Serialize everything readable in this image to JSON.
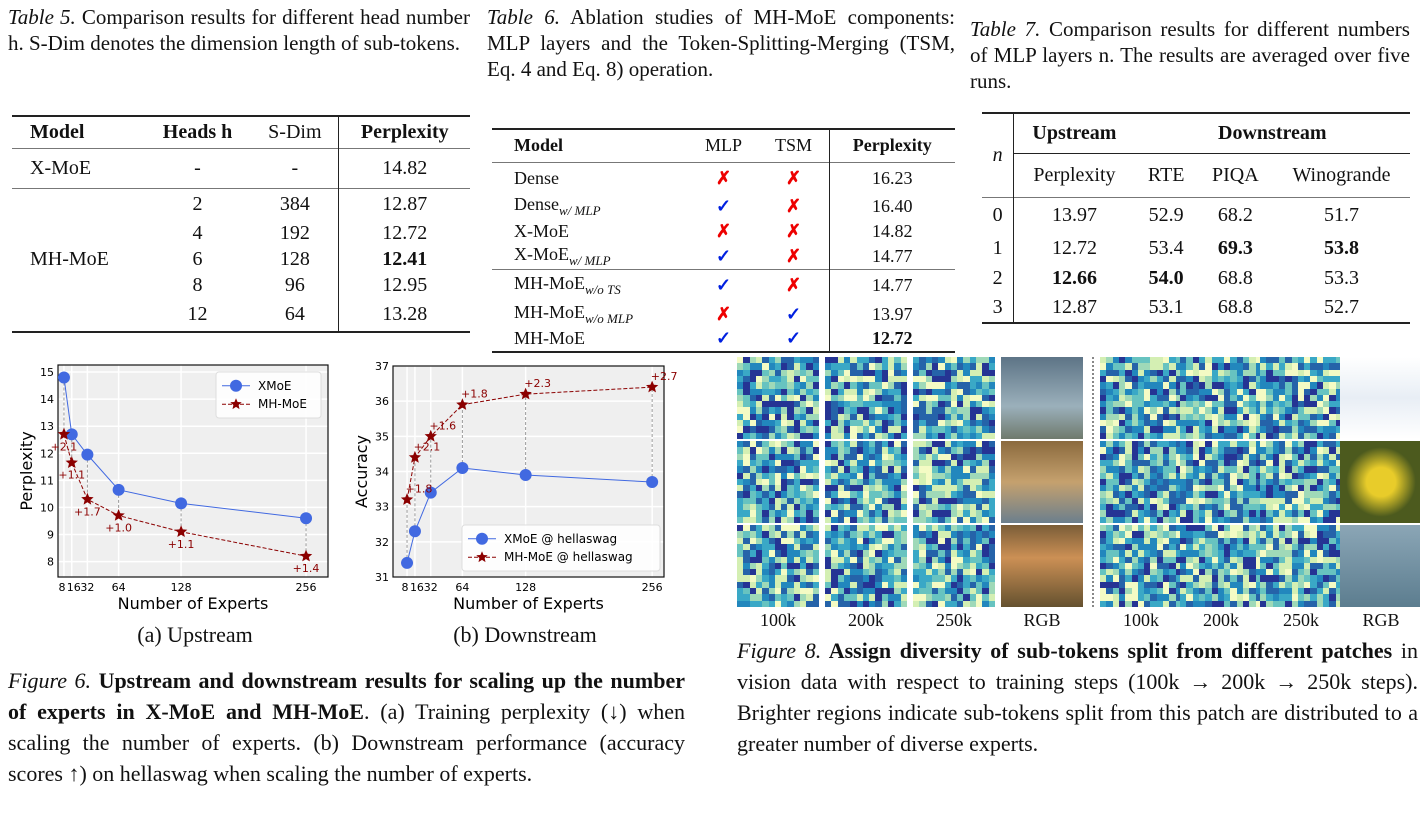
{
  "table5": {
    "label": "Table 5.",
    "caption": " Comparison results for different head number h. S-Dim denotes the dimension length of sub-tokens.",
    "headers": [
      "Model",
      "Heads h",
      "S-Dim",
      "Perplexity"
    ],
    "xmoe": {
      "model": "X-MoE",
      "heads": "-",
      "sdim": "-",
      "ppl": "14.82"
    },
    "mhmoe_label": "MH-MoE",
    "rows": [
      {
        "heads": "2",
        "sdim": "384",
        "ppl": "12.87"
      },
      {
        "heads": "4",
        "sdim": "192",
        "ppl": "12.72"
      },
      {
        "heads": "6",
        "sdim": "128",
        "ppl": "12.41"
      },
      {
        "heads": "8",
        "sdim": "96",
        "ppl": "12.95"
      },
      {
        "heads": "12",
        "sdim": "64",
        "ppl": "13.28"
      }
    ]
  },
  "table6": {
    "label": "Table 6.",
    "caption": " Ablation studies of MH-MoE components: MLP layers and the Token-Splitting-Merging (TSM, Eq. 4 and Eq. 8) operation.",
    "headers": [
      "Model",
      "MLP",
      "TSM",
      "Perplexity"
    ],
    "check": "✓",
    "cross": "✗",
    "rows": [
      {
        "model": "Dense",
        "sub": "",
        "mlp": "cross",
        "tsm": "cross",
        "ppl": "16.23"
      },
      {
        "model": "Dense",
        "sub": "w/ MLP",
        "mlp": "check",
        "tsm": "cross",
        "ppl": "16.40"
      },
      {
        "model": "X-MoE",
        "sub": "",
        "mlp": "cross",
        "tsm": "cross",
        "ppl": "14.82"
      },
      {
        "model": "X-MoE",
        "sub": "w/ MLP",
        "mlp": "check",
        "tsm": "cross",
        "ppl": "14.77"
      },
      {
        "model": "MH-MoE",
        "sub": "w/o TS",
        "mlp": "check",
        "tsm": "cross",
        "ppl": "14.77"
      },
      {
        "model": "MH-MoE",
        "sub": "w/o MLP",
        "mlp": "cross",
        "tsm": "check",
        "ppl": "13.97"
      },
      {
        "model": "MH-MoE",
        "sub": "",
        "mlp": "check",
        "tsm": "check",
        "ppl": "12.72"
      }
    ]
  },
  "table7": {
    "label": "Table 7.",
    "caption": " Comparison results for different numbers of MLP layers n. The results are averaged over five runs.",
    "n": "n",
    "upstream": "Upstream",
    "downstream": "Downstream",
    "cols": [
      "Perplexity",
      "RTE",
      "PIQA",
      "Winogrande"
    ],
    "rows": [
      [
        "0",
        "13.97",
        "52.9",
        "68.2",
        "51.7"
      ],
      [
        "1",
        "12.72",
        "53.4",
        "69.3",
        "53.8"
      ],
      [
        "2",
        "12.66",
        "54.0",
        "68.8",
        "53.3"
      ],
      [
        "3",
        "12.87",
        "53.1",
        "68.8",
        "52.7"
      ]
    ]
  },
  "chart_data": [
    {
      "type": "line",
      "title": "(a) Upstream",
      "xlabel": "Number of Experts",
      "ylabel": "Perplexity",
      "x": [
        8,
        16,
        32,
        64,
        128,
        256
      ],
      "xticks": [
        "8",
        "16",
        "32",
        "64",
        "128",
        "256"
      ],
      "yticks": [
        "8",
        "9",
        "10",
        "11",
        "12",
        "13",
        "14",
        "15"
      ],
      "ylim": [
        7.43,
        15.26
      ],
      "xlim": [
        1.9,
        278.5
      ],
      "legend": "top-right",
      "grid": true,
      "series": [
        {
          "name": "XMoE",
          "values": [
            14.8,
            12.7,
            11.95,
            10.65,
            10.15,
            9.6
          ]
        },
        {
          "name": "MH-MoE",
          "values": [
            12.7,
            11.65,
            10.3,
            9.7,
            9.1,
            8.2
          ]
        }
      ],
      "annotations": [
        "+2.1",
        "+1.1",
        "+1.7",
        "+1.0",
        "+1.1",
        "+1.4"
      ]
    },
    {
      "type": "line",
      "title": "(b) Downstream",
      "xlabel": "Number of Experts",
      "ylabel": "Accuracy",
      "x": [
        8,
        16,
        32,
        64,
        128,
        256
      ],
      "xticks": [
        "8",
        "16",
        "32",
        "64",
        "128",
        "256"
      ],
      "yticks": [
        "31",
        "32",
        "33",
        "34",
        "35",
        "36",
        "37"
      ],
      "ylim": [
        31,
        37
      ],
      "xlim": [
        -6.2,
        268
      ],
      "legend": "bottom-right",
      "grid": true,
      "series": [
        {
          "name": "XMoE @ hellaswag",
          "values": [
            31.4,
            32.3,
            33.4,
            34.1,
            33.9,
            33.7
          ]
        },
        {
          "name": "MH-MoE @ hellaswag",
          "values": [
            33.2,
            34.4,
            35.0,
            35.9,
            36.2,
            36.4
          ]
        }
      ],
      "annotations": [
        "+1.8",
        "+2.1",
        "+1.6",
        "+1.8",
        "+2.3",
        "+2.7"
      ]
    }
  ],
  "fig6": {
    "label": "Figure 6.",
    "bold": " Upstream and downstream results for scaling up the number of experts in X-MoE and MH-MoE",
    "rest": ". (a) Training perplexity (↓) when scaling the number of experts. (b) Downstream performance (accuracy scores ↑) on hellaswag when scaling the number of experts."
  },
  "fig8": {
    "label": "Figure 8.",
    "bold": " Assign diversity of sub-tokens split from different patches",
    "rest": " in vision data with respect to training steps (100k → 200k → 250k steps). Brighter regions indicate sub-tokens split from this patch are distributed to a greater number of diverse experts.",
    "cols": [
      "100k",
      "200k",
      "250k",
      "RGB",
      "100k",
      "200k",
      "250k",
      "RGB"
    ]
  },
  "colors": {
    "xmoe": "#4169e1",
    "mhmoe": "#8b0000"
  }
}
